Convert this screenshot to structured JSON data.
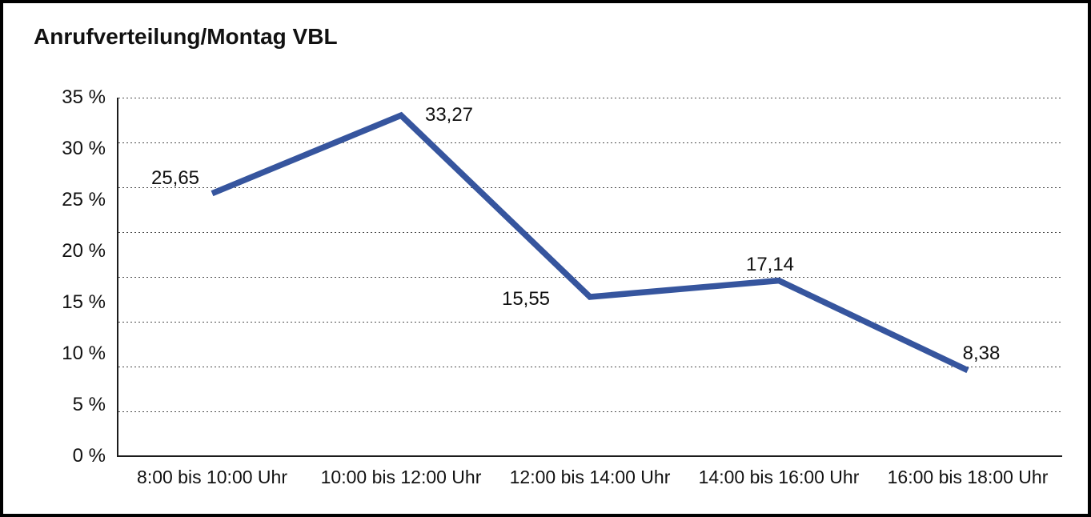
{
  "title": "Anrufverteilung/Montag VBL",
  "chart_data": {
    "type": "line",
    "title": "Anrufverteilung/Montag VBL",
    "categories": [
      "8:00 bis 10:00 Uhr",
      "10:00 bis 12:00 Uhr",
      "12:00 bis 14:00 Uhr",
      "14:00 bis 16:00 Uhr",
      "16:00 bis 18:00 Uhr"
    ],
    "values": [
      25.65,
      33.27,
      15.55,
      17.14,
      8.38
    ],
    "value_labels": [
      "25,65",
      "33,27",
      "15,55",
      "17,14",
      "8,38"
    ],
    "xlabel": "",
    "ylabel": "",
    "ylim": [
      0,
      35
    ],
    "ytick_step": 5,
    "ytick_labels": [
      "0 %",
      "5 %",
      "10 %",
      "15 %",
      "20 %",
      "25 %",
      "30 %",
      "35 %"
    ],
    "legend": "none",
    "grid": "horizontal dotted",
    "line_color": "#36559E"
  }
}
